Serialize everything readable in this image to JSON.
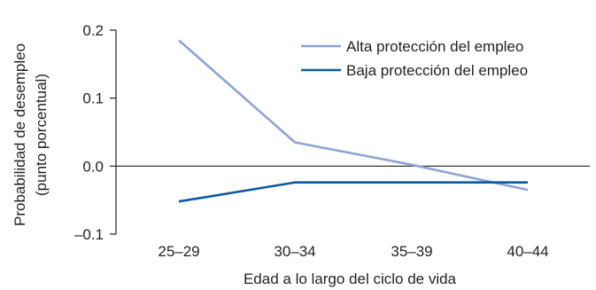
{
  "chart_data": {
    "type": "line",
    "categories": [
      "25–29",
      "30–34",
      "35–39",
      "40–44"
    ],
    "series": [
      {
        "name": "Alta protección del empleo",
        "values": [
          0.185,
          0.035,
          0.002,
          -0.035
        ],
        "color": "#8ea4d2"
      },
      {
        "name": "Baja protección del empleo",
        "values": [
          -0.052,
          -0.024,
          -0.024,
          -0.024
        ],
        "color": "#0b5aa0"
      }
    ],
    "xlabel": "Edad a lo largo del ciclo de vida",
    "ylabel_lines": [
      "Probabilidad de desempleo",
      "(punto porcentual)"
    ],
    "ylim": [
      -0.1,
      0.2
    ],
    "yticks": [
      -0.1,
      0.0,
      0.1,
      0.2
    ],
    "ytick_labels": [
      "–0.1",
      "0.0",
      "0.1",
      "0.2"
    ],
    "legend_position": "top-right",
    "grid": false,
    "zero_line": true
  }
}
